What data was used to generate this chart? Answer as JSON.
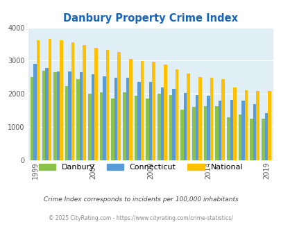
{
  "title": "Danbury Property Crime Index",
  "years": [
    1999,
    2000,
    2001,
    2002,
    2003,
    2004,
    2005,
    2006,
    2007,
    2008,
    2009,
    2010,
    2011,
    2012,
    2013,
    2014,
    2015,
    2016,
    2017,
    2018,
    2019
  ],
  "danbury": [
    2500,
    2700,
    2650,
    2230,
    2450,
    2010,
    2050,
    1870,
    2050,
    1950,
    1870,
    2000,
    1960,
    1530,
    1610,
    1630,
    1620,
    1300,
    1380,
    1250,
    1250
  ],
  "connecticut": [
    2900,
    2780,
    2680,
    2670,
    2650,
    2590,
    2530,
    2490,
    2480,
    2360,
    2360,
    2190,
    2150,
    2030,
    1970,
    1950,
    1800,
    1810,
    1790,
    1700,
    1430
  ],
  "national": [
    3620,
    3660,
    3610,
    3550,
    3460,
    3390,
    3330,
    3250,
    3060,
    2990,
    2960,
    2890,
    2730,
    2620,
    2510,
    2490,
    2450,
    2190,
    2120,
    2100,
    2090
  ],
  "danbury_color": "#8bc34a",
  "connecticut_color": "#5b9bd5",
  "national_color": "#ffc000",
  "bg_color": "#e0eff5",
  "title_color": "#1565c0",
  "ylim": [
    0,
    4000
  ],
  "yticks": [
    0,
    1000,
    2000,
    3000,
    4000
  ],
  "xtick_years": [
    1999,
    2004,
    2009,
    2014,
    2019
  ],
  "legend_labels": [
    "Danbury",
    "Connecticut",
    "National"
  ],
  "footnote1": "Crime Index corresponds to incidents per 100,000 inhabitants",
  "footnote2": "© 2025 CityRating.com - https://www.cityrating.com/crime-statistics/",
  "bar_width": 0.27
}
